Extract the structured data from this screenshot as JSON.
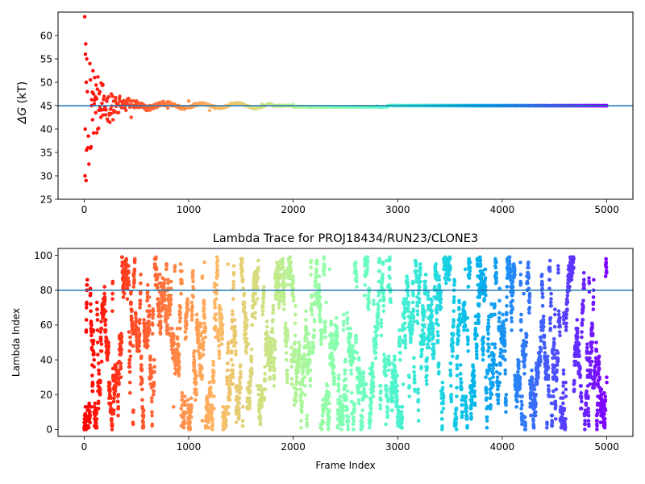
{
  "colors": {
    "hline": "#1f77b4",
    "axis": "#000000"
  },
  "chart_data": [
    {
      "type": "scatter",
      "title": "",
      "xlabel": "",
      "ylabel": "ΔG (kT)",
      "ylabel_symbol": "ΔG",
      "ylabel_unit": " (kT)",
      "xlim": [
        -250,
        5250
      ],
      "ylim": [
        25,
        65
      ],
      "xticks": [
        0,
        1000,
        2000,
        3000,
        4000,
        5000
      ],
      "xtick_labels": [
        "0",
        "1000",
        "2000",
        "3000",
        "4000",
        "5000"
      ],
      "yticks": [
        25,
        30,
        35,
        40,
        45,
        50,
        55,
        60
      ],
      "ytick_labels": [
        "25",
        "30",
        "35",
        "40",
        "45",
        "50",
        "55",
        "60"
      ],
      "hline": 45.0,
      "frames": [
        0,
        5000
      ],
      "colormap": "rainbow (red → violet by frame index)",
      "converged_value": 45.0,
      "points": [
        [
          5,
          64.0
        ],
        [
          15,
          58.2
        ],
        [
          12,
          56.0
        ],
        [
          25,
          55.0
        ],
        [
          20,
          50.0
        ],
        [
          30,
          48.0
        ],
        [
          10,
          40.0
        ],
        [
          8,
          30.0
        ],
        [
          18,
          29.0
        ],
        [
          22,
          35.5
        ],
        [
          35,
          36.0
        ],
        [
          40,
          38.5
        ],
        [
          45,
          32.5
        ],
        [
          55,
          54.0
        ],
        [
          60,
          50.5
        ],
        [
          70,
          45.0
        ],
        [
          80,
          42.0
        ],
        [
          90,
          47.5
        ],
        [
          100,
          51.0
        ],
        [
          110,
          43.5
        ],
        [
          120,
          46.5
        ],
        [
          130,
          40.0
        ],
        [
          140,
          44.0
        ],
        [
          150,
          48.0
        ],
        [
          160,
          42.5
        ],
        [
          170,
          45.5
        ],
        [
          180,
          43.0
        ],
        [
          190,
          47.0
        ],
        [
          200,
          44.5
        ],
        [
          220,
          46.5
        ],
        [
          240,
          43.0
        ],
        [
          260,
          47.5
        ],
        [
          280,
          44.0
        ],
        [
          300,
          46.0
        ],
        [
          320,
          43.5
        ],
        [
          340,
          47.0
        ],
        [
          360,
          45.0
        ],
        [
          400,
          44.0
        ],
        [
          450,
          42.5
        ],
        [
          500,
          46.0
        ],
        [
          550,
          45.5
        ],
        [
          600,
          44.5
        ],
        [
          700,
          45.5
        ],
        [
          800,
          44.5
        ],
        [
          900,
          45.0
        ],
        [
          1000,
          46.0
        ],
        [
          1100,
          45.5
        ],
        [
          1200,
          44.0
        ],
        [
          1300,
          44.5
        ],
        [
          1400,
          45.5
        ],
        [
          1500,
          45.5
        ],
        [
          1700,
          45.3
        ],
        [
          2000,
          45.2
        ],
        [
          2200,
          44.8
        ],
        [
          2500,
          44.7
        ],
        [
          2800,
          44.9
        ],
        [
          3000,
          45.1
        ],
        [
          3500,
          45.0
        ],
        [
          4000,
          45.0
        ],
        [
          4500,
          45.0
        ],
        [
          5000,
          45.0
        ]
      ]
    },
    {
      "type": "scatter",
      "title": "Lambda Trace for PROJ18434/RUN23/CLONE3",
      "xlabel": "Frame Index",
      "ylabel": "Lambda Index",
      "xlim": [
        -250,
        5250
      ],
      "ylim": [
        -4,
        104
      ],
      "xticks": [
        0,
        1000,
        2000,
        3000,
        4000,
        5000
      ],
      "xtick_labels": [
        "0",
        "1000",
        "2000",
        "3000",
        "4000",
        "5000"
      ],
      "yticks": [
        0,
        20,
        40,
        60,
        80,
        100
      ],
      "ytick_labels": [
        "0",
        "20",
        "40",
        "60",
        "80",
        "100"
      ],
      "hline": 80,
      "frames": [
        0,
        5000
      ],
      "lambda_range": [
        0,
        99
      ],
      "sample_count": 5000,
      "colormap": "rainbow (red → violet by frame index)"
    }
  ]
}
